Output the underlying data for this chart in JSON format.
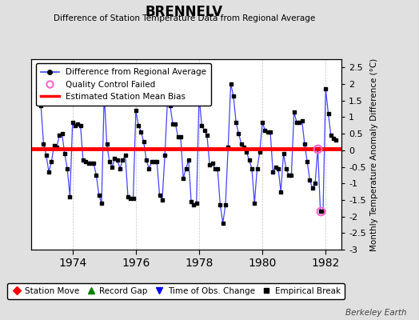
{
  "title": "BRENNELV",
  "subtitle": "Difference of Station Temperature Data from Regional Average",
  "ylabel_right": "Monthly Temperature Anomaly Difference (°C)",
  "bias_value": 0.05,
  "ylim": [
    -3.0,
    2.75
  ],
  "xlim": [
    1972.7,
    1982.5
  ],
  "xticks": [
    1974,
    1976,
    1978,
    1980,
    1982
  ],
  "xticklabels": [
    "1974",
    "1976",
    "1978",
    "1980",
    "1982"
  ],
  "yticks_right": [
    -3,
    -2.5,
    -2,
    -1.5,
    -1,
    -0.5,
    0,
    0.5,
    1,
    1.5,
    2,
    2.5
  ],
  "background_color": "#e0e0e0",
  "plot_bg_color": "#ffffff",
  "line_color": "#4444ff",
  "dot_color": "#000000",
  "bias_color": "#ff0000",
  "qc_color": "#ff66cc",
  "watermark": "Berkeley Earth",
  "data": [
    [
      1973.0,
      1.35
    ],
    [
      1973.083,
      0.2
    ],
    [
      1973.167,
      -0.15
    ],
    [
      1973.25,
      -0.65
    ],
    [
      1973.333,
      -0.35
    ],
    [
      1973.417,
      0.15
    ],
    [
      1973.5,
      0.1
    ],
    [
      1973.583,
      0.45
    ],
    [
      1973.667,
      0.5
    ],
    [
      1973.75,
      -0.1
    ],
    [
      1973.833,
      -0.55
    ],
    [
      1973.917,
      -1.4
    ],
    [
      1974.0,
      0.85
    ],
    [
      1974.083,
      0.75
    ],
    [
      1974.167,
      0.8
    ],
    [
      1974.25,
      0.75
    ],
    [
      1974.333,
      -0.3
    ],
    [
      1974.417,
      -0.35
    ],
    [
      1974.5,
      -0.4
    ],
    [
      1974.583,
      -0.4
    ],
    [
      1974.667,
      -0.4
    ],
    [
      1974.75,
      -0.75
    ],
    [
      1974.833,
      -1.35
    ],
    [
      1974.917,
      -1.6
    ],
    [
      1975.0,
      1.7
    ],
    [
      1975.083,
      0.2
    ],
    [
      1975.167,
      -0.35
    ],
    [
      1975.25,
      -0.5
    ],
    [
      1975.333,
      -0.25
    ],
    [
      1975.417,
      -0.3
    ],
    [
      1975.5,
      -0.55
    ],
    [
      1975.583,
      -0.3
    ],
    [
      1975.667,
      -0.15
    ],
    [
      1975.75,
      -1.4
    ],
    [
      1975.833,
      -1.45
    ],
    [
      1975.917,
      -1.45
    ],
    [
      1976.0,
      1.2
    ],
    [
      1976.083,
      0.75
    ],
    [
      1976.167,
      0.55
    ],
    [
      1976.25,
      0.25
    ],
    [
      1976.333,
      -0.3
    ],
    [
      1976.417,
      -0.55
    ],
    [
      1976.5,
      -0.35
    ],
    [
      1976.583,
      -0.35
    ],
    [
      1976.667,
      -0.35
    ],
    [
      1976.75,
      -1.35
    ],
    [
      1976.833,
      -1.5
    ],
    [
      1976.917,
      -0.15
    ],
    [
      1977.0,
      1.5
    ],
    [
      1977.083,
      1.35
    ],
    [
      1977.167,
      0.8
    ],
    [
      1977.25,
      0.8
    ],
    [
      1977.333,
      0.4
    ],
    [
      1977.417,
      0.4
    ],
    [
      1977.5,
      -0.85
    ],
    [
      1977.583,
      -0.55
    ],
    [
      1977.667,
      -0.3
    ],
    [
      1977.75,
      -1.55
    ],
    [
      1977.833,
      -1.65
    ],
    [
      1977.917,
      -1.6
    ],
    [
      1978.0,
      1.65
    ],
    [
      1978.083,
      0.75
    ],
    [
      1978.167,
      0.6
    ],
    [
      1978.25,
      0.45
    ],
    [
      1978.333,
      -0.45
    ],
    [
      1978.417,
      -0.4
    ],
    [
      1978.5,
      -0.55
    ],
    [
      1978.583,
      -0.55
    ],
    [
      1978.667,
      -1.65
    ],
    [
      1978.75,
      -2.2
    ],
    [
      1978.833,
      -1.65
    ],
    [
      1978.917,
      0.1
    ],
    [
      1979.0,
      2.0
    ],
    [
      1979.083,
      1.65
    ],
    [
      1979.167,
      0.85
    ],
    [
      1979.25,
      0.5
    ],
    [
      1979.333,
      0.2
    ],
    [
      1979.417,
      0.1
    ],
    [
      1979.5,
      -0.05
    ],
    [
      1979.583,
      -0.3
    ],
    [
      1979.667,
      -0.55
    ],
    [
      1979.75,
      -1.6
    ],
    [
      1979.833,
      -0.55
    ],
    [
      1979.917,
      -0.05
    ],
    [
      1980.0,
      0.85
    ],
    [
      1980.083,
      0.6
    ],
    [
      1980.167,
      0.55
    ],
    [
      1980.25,
      0.55
    ],
    [
      1980.333,
      -0.65
    ],
    [
      1980.417,
      -0.5
    ],
    [
      1980.5,
      -0.55
    ],
    [
      1980.583,
      -1.25
    ],
    [
      1980.667,
      -0.1
    ],
    [
      1980.75,
      -0.55
    ],
    [
      1980.833,
      -0.75
    ],
    [
      1980.917,
      -0.75
    ],
    [
      1981.0,
      1.15
    ],
    [
      1981.083,
      0.85
    ],
    [
      1981.167,
      0.85
    ],
    [
      1981.25,
      0.9
    ],
    [
      1981.333,
      0.2
    ],
    [
      1981.417,
      -0.35
    ],
    [
      1981.5,
      -0.9
    ],
    [
      1981.583,
      -1.15
    ],
    [
      1981.667,
      -1.0
    ],
    [
      1981.75,
      0.05
    ],
    [
      1981.833,
      -1.85
    ],
    [
      1981.917,
      -1.85
    ],
    [
      1982.0,
      1.85
    ],
    [
      1982.083,
      1.1
    ],
    [
      1982.167,
      0.45
    ],
    [
      1982.25,
      0.35
    ],
    [
      1982.333,
      0.3
    ]
  ],
  "qc_failed_points": [
    [
      1981.75,
      0.05
    ],
    [
      1981.833,
      -1.85
    ]
  ]
}
